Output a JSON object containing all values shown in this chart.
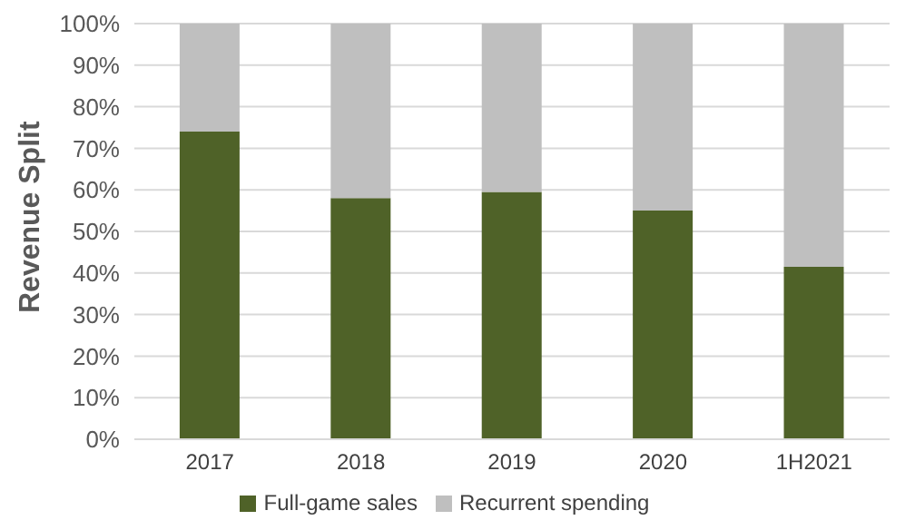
{
  "chart_data": {
    "type": "bar",
    "stacked": true,
    "ylabel": "Revenue Split",
    "categories": [
      "2017",
      "2018",
      "2019",
      "2020",
      "1H2021"
    ],
    "series": [
      {
        "name": "Full-game sales",
        "color": "#4f6228",
        "values": [
          74,
          58,
          59.5,
          55,
          41.5
        ]
      },
      {
        "name": "Recurrent spending",
        "color": "#bfbfbf",
        "values": [
          26,
          42,
          40.5,
          45,
          58.5
        ]
      }
    ],
    "ylim": [
      0,
      100
    ],
    "yticks": [
      {
        "value": 0,
        "label": "0%"
      },
      {
        "value": 10,
        "label": "10%"
      },
      {
        "value": 20,
        "label": "20%"
      },
      {
        "value": 30,
        "label": "30%"
      },
      {
        "value": 40,
        "label": "40%"
      },
      {
        "value": 50,
        "label": "50%"
      },
      {
        "value": 60,
        "label": "60%"
      },
      {
        "value": 70,
        "label": "70%"
      },
      {
        "value": 80,
        "label": "80%"
      },
      {
        "value": 90,
        "label": "90%"
      },
      {
        "value": 100,
        "label": "100%"
      }
    ],
    "grid": "y",
    "legend": "bottom"
  }
}
